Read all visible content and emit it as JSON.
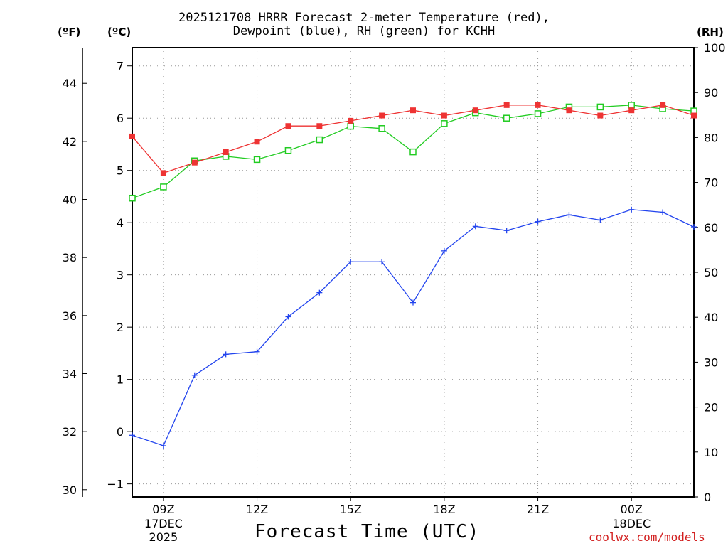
{
  "title_line1": "2025121708 HRRR Forecast 2-meter Temperature (red),",
  "title_line2": "Dewpoint (blue), RH (green) for KCHH",
  "unit_f": "(ºF)",
  "unit_c": "(ºC)",
  "unit_rh": "(RH)",
  "xlabel": "Forecast Time (UTC)",
  "credit": "coolwx.com/models",
  "colors": {
    "temperature": "#ee3333",
    "dewpoint": "#2244ee",
    "rh": "#22cc22",
    "grid": "#999999"
  },
  "chart_data": {
    "type": "line",
    "title": "2025121708 HRRR Forecast 2-meter Temperature (red), Dewpoint (blue), RH (green) for KCHH",
    "x_hours": [
      8,
      9,
      10,
      11,
      12,
      13,
      14,
      15,
      16,
      17,
      18,
      19,
      20,
      21,
      22,
      23,
      24,
      25,
      26
    ],
    "xlim": [
      8,
      26
    ],
    "x_ticks": [
      {
        "hour": 9,
        "label": "09Z",
        "date1": "17DEC",
        "date2": "2025"
      },
      {
        "hour": 12,
        "label": "12Z"
      },
      {
        "hour": 15,
        "label": "15Z"
      },
      {
        "hour": 18,
        "label": "18Z"
      },
      {
        "hour": 21,
        "label": "21Z"
      },
      {
        "hour": 24,
        "label": "00Z",
        "date1": "18DEC"
      }
    ],
    "y_celsius": {
      "label": "(ºC)",
      "ylim": [
        -1.25,
        7.35
      ],
      "ticks": [
        -1,
        0,
        1,
        2,
        3,
        4,
        5,
        6,
        7
      ]
    },
    "y_fahrenheit": {
      "label": "(ºF)",
      "ticks": [
        30,
        32,
        34,
        36,
        38,
        40,
        42,
        44
      ]
    },
    "y_rh": {
      "label": "(RH)",
      "ylim": [
        0,
        100
      ],
      "ticks": [
        0,
        10,
        20,
        30,
        40,
        50,
        60,
        70,
        80,
        90,
        100
      ]
    },
    "series": [
      {
        "name": "Temperature",
        "unit": "C",
        "color": "#ee3333",
        "marker": "filled-square",
        "values": [
          5.65,
          4.95,
          5.15,
          5.35,
          5.55,
          5.85,
          5.85,
          5.95,
          6.05,
          6.15,
          6.05,
          6.15,
          6.25,
          6.25,
          6.15,
          6.05,
          6.15,
          6.25,
          6.05
        ]
      },
      {
        "name": "Dewpoint",
        "unit": "C",
        "color": "#2244ee",
        "marker": "plus",
        "values": [
          -0.07,
          -0.27,
          1.08,
          1.48,
          1.53,
          2.2,
          2.66,
          3.25,
          3.25,
          2.47,
          3.46,
          3.93,
          3.85,
          4.02,
          4.15,
          4.05,
          4.25,
          4.2,
          3.92
        ]
      },
      {
        "name": "RH",
        "unit": "%",
        "color": "#22cc22",
        "marker": "open-square",
        "values": [
          66.5,
          69,
          74.8,
          75.8,
          75.1,
          77.1,
          79.5,
          82.5,
          82,
          76.8,
          83.1,
          85.5,
          84.3,
          85.3,
          86.8,
          86.8,
          87.2,
          86.4,
          85.9
        ]
      }
    ]
  }
}
